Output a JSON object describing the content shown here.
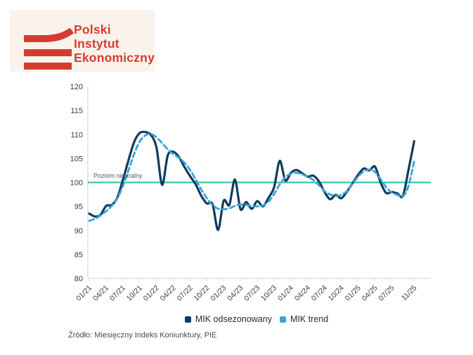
{
  "logo": {
    "line1": "Polski",
    "line2": "Instytut",
    "line3": "Ekonomiczny",
    "brand_red": "#d63b30",
    "background": "#faf3ec"
  },
  "source": "Źródło: Miesięczny Indeks Koniunktury, PIE",
  "chart_data": {
    "type": "line",
    "title": "",
    "xlabel": "",
    "ylabel": "",
    "ylim": [
      80,
      120
    ],
    "yticks": [
      80,
      85,
      90,
      95,
      100,
      105,
      110,
      115,
      120
    ],
    "grid": false,
    "legend_position": "bottom",
    "x_tick_labels": [
      "01/21",
      "04/21",
      "07/21",
      "10/21",
      "01/22",
      "04/22",
      "07/22",
      "10/22",
      "01/23",
      "04/23",
      "07/23",
      "10/23",
      "01/24",
      "04/24",
      "07/24",
      "10/24",
      "01/25",
      "04/25",
      "07/25",
      "11/25"
    ],
    "categories": [
      "01/21",
      "02/21",
      "03/21",
      "04/21",
      "05/21",
      "06/21",
      "07/21",
      "08/21",
      "09/21",
      "10/21",
      "11/21",
      "12/21",
      "01/22",
      "02/22",
      "03/22",
      "04/22",
      "05/22",
      "06/22",
      "07/22",
      "08/22",
      "09/22",
      "10/22",
      "11/22",
      "12/22",
      "01/23",
      "02/23",
      "03/23",
      "04/23",
      "05/23",
      "06/23",
      "07/23",
      "08/23",
      "09/23",
      "10/23",
      "11/23",
      "12/23",
      "01/24",
      "02/24",
      "03/24",
      "04/24",
      "05/24",
      "06/24",
      "07/24",
      "08/24",
      "09/24",
      "10/24",
      "11/24",
      "12/24",
      "01/25",
      "02/25",
      "03/25",
      "04/25",
      "05/25",
      "06/25",
      "07/25",
      "08/25",
      "09/25",
      "10/25",
      "11/25"
    ],
    "neutral_line": {
      "value": 100,
      "label": "Poziom neutralny",
      "color": "#3cc5b3"
    },
    "series": [
      {
        "name": "MIK odsezonowany",
        "style": "solid",
        "color": "#123a5c",
        "values": [
          93.5,
          92.9,
          93.2,
          95.1,
          95.3,
          96.8,
          100.5,
          104.6,
          108.4,
          110.3,
          110.5,
          109.9,
          107.3,
          99.5,
          105.6,
          106.4,
          105.3,
          103.2,
          101.3,
          99.6,
          97.2,
          95.6,
          95.5,
          90.1,
          96.2,
          95.3,
          100.6,
          94.4,
          95.9,
          94.5,
          96.1,
          95.0,
          96.8,
          99.0,
          104.5,
          100.4,
          102.0,
          102.6,
          101.9,
          101.2,
          101.4,
          100.2,
          98.0,
          96.5,
          97.4,
          96.7,
          98.1,
          99.8,
          101.6,
          102.9,
          102.5,
          103.3,
          100.0,
          97.8,
          98.0,
          97.7,
          97.2,
          102.7,
          108.6
        ]
      },
      {
        "name": "MIK trend",
        "style": "dashed",
        "color": "#38a3da",
        "values": [
          92.0,
          92.4,
          93.1,
          94.0,
          95.1,
          96.7,
          99.2,
          102.5,
          105.9,
          108.5,
          109.8,
          110.1,
          109.4,
          108.2,
          106.9,
          105.9,
          105.1,
          104.1,
          102.6,
          100.6,
          98.5,
          96.7,
          95.3,
          94.5,
          94.4,
          94.6,
          95.1,
          95.4,
          95.3,
          95.1,
          95.0,
          95.2,
          96.0,
          97.6,
          99.6,
          101.1,
          101.8,
          102.0,
          101.7,
          101.2,
          100.5,
          99.4,
          98.2,
          97.5,
          97.2,
          97.4,
          98.2,
          99.7,
          101.2,
          102.3,
          102.7,
          102.2,
          100.7,
          99.0,
          97.9,
          97.4,
          97.1,
          99.3,
          104.5
        ]
      }
    ],
    "axis_color": "#d8d8d8",
    "tick_text_color": "#3d3d3d"
  }
}
